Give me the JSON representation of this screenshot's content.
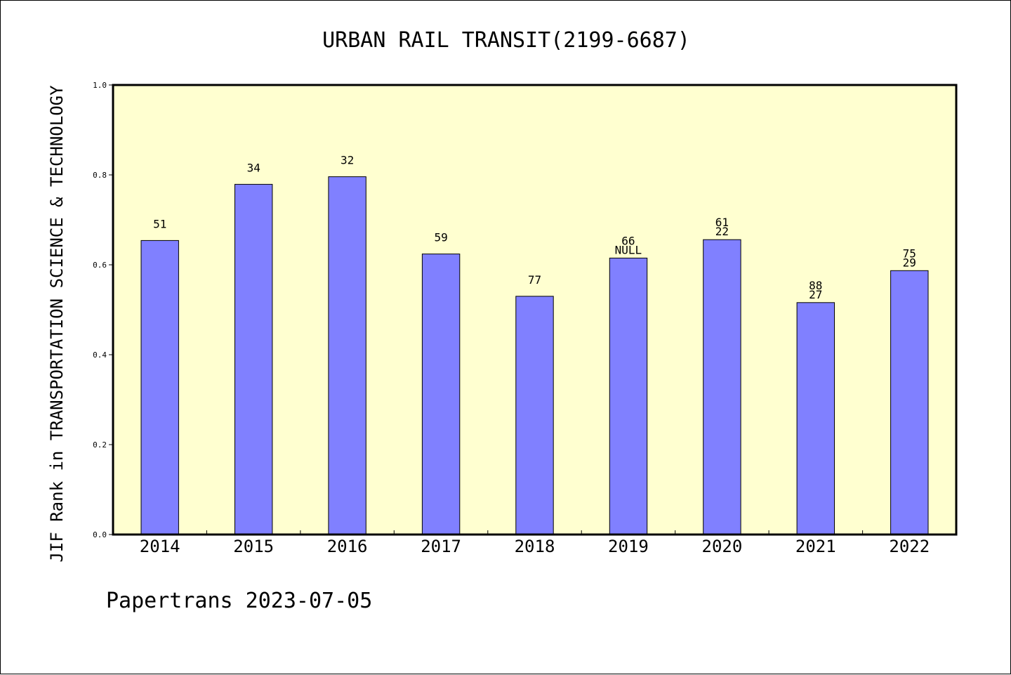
{
  "chart_data": {
    "type": "bar",
    "title": "URBAN RAIL TRANSIT(2199-6687)",
    "xlabel": "",
    "ylabel": "JIF Rank in TRANSPORTATION SCIENCE & TECHNOLOGY",
    "ylim": [
      0.0,
      1.0
    ],
    "yticks": [
      "0.0",
      "0.2",
      "0.4",
      "0.6",
      "0.8",
      "1.0"
    ],
    "categories": [
      "2014",
      "2015",
      "2016",
      "2017",
      "2018",
      "2019",
      "2020",
      "2021",
      "2022"
    ],
    "values": [
      0.654,
      0.779,
      0.796,
      0.624,
      0.53,
      0.615,
      0.656,
      0.516,
      0.587
    ],
    "bar_labels": [
      [
        "51"
      ],
      [
        "34"
      ],
      [
        "32"
      ],
      [
        "59"
      ],
      [
        "77"
      ],
      [
        "66",
        "NULL"
      ],
      [
        "61",
        "22"
      ],
      [
        "88",
        "27"
      ],
      [
        "75",
        "29"
      ]
    ],
    "grid": false,
    "legend": "none",
    "colors": {
      "bar_fill": "#8080ff",
      "plot_background": "#ffffd0",
      "axes": "#000000"
    }
  },
  "footer": "Papertrans 2023-07-05"
}
